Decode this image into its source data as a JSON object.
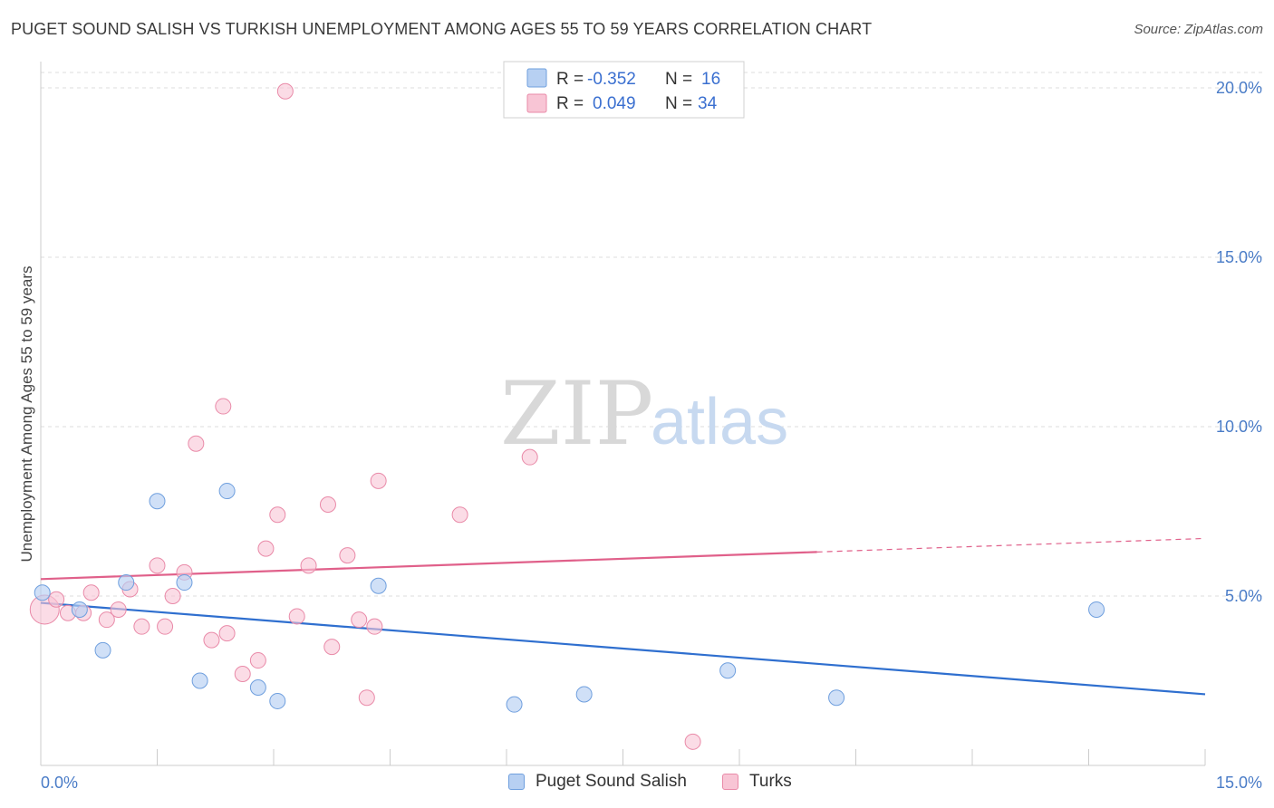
{
  "header": {
    "title": "PUGET SOUND SALISH VS TURKISH UNEMPLOYMENT AMONG AGES 55 TO 59 YEARS CORRELATION CHART",
    "source": "Source: ZipAtlas.com"
  },
  "watermark": {
    "zip": "ZIP",
    "atlas": "atlas"
  },
  "legend_box": {
    "rows": [
      {
        "r_label": "R =",
        "r_value": "-0.352",
        "n_label": "N =",
        "n_value": "16"
      },
      {
        "r_label": "R =",
        "r_value": "0.049",
        "n_label": "N =",
        "n_value": "34"
      }
    ]
  },
  "bottom_legend": {
    "series_a": "Puget Sound Salish",
    "series_b": "Turks"
  },
  "colors": {
    "salish_fill": "#b7d0f2",
    "salish_stroke": "#6f9fde",
    "salish_line": "#2f6fcf",
    "turks_fill": "#f8c5d5",
    "turks_stroke": "#e98aa8",
    "turks_line": "#e0608a",
    "tick_text": "#4a7cc7",
    "grid": "#dddddd"
  },
  "chart_data": {
    "type": "scatter",
    "title": "PUGET SOUND SALISH VS TURKISH UNEMPLOYMENT AMONG AGES 55 TO 59 YEARS CORRELATION CHART",
    "ylabel": "Unemployment Among Ages 55 to 59 years",
    "xlabel": "",
    "xlim": [
      0,
      15
    ],
    "ylim": [
      0,
      20.5
    ],
    "x_ticks": [
      "0.0%",
      "15.0%"
    ],
    "y_ticks": [
      "5.0%",
      "10.0%",
      "15.0%",
      "20.0%"
    ],
    "y_tick_values": [
      5,
      10,
      15,
      20
    ],
    "grid": true,
    "legend_position": "top-center",
    "series": [
      {
        "name": "Puget Sound Salish",
        "R": -0.352,
        "N": 16,
        "points": [
          {
            "x": 0.02,
            "y": 5.1
          },
          {
            "x": 0.5,
            "y": 4.6
          },
          {
            "x": 0.8,
            "y": 3.4
          },
          {
            "x": 1.1,
            "y": 5.4
          },
          {
            "x": 1.5,
            "y": 7.8
          },
          {
            "x": 1.85,
            "y": 5.4
          },
          {
            "x": 2.05,
            "y": 2.5
          },
          {
            "x": 2.4,
            "y": 8.1
          },
          {
            "x": 2.8,
            "y": 2.3
          },
          {
            "x": 3.05,
            "y": 1.9
          },
          {
            "x": 4.35,
            "y": 5.3
          },
          {
            "x": 6.1,
            "y": 1.8
          },
          {
            "x": 7.0,
            "y": 2.1
          },
          {
            "x": 8.85,
            "y": 2.8
          },
          {
            "x": 10.25,
            "y": 2.0
          },
          {
            "x": 13.6,
            "y": 4.6
          }
        ],
        "trend": {
          "x0": 0,
          "y0": 4.8,
          "x1": 15,
          "y1": 2.1
        }
      },
      {
        "name": "Turks",
        "R": 0.049,
        "N": 34,
        "points": [
          {
            "x": 0.05,
            "y": 4.6,
            "big": true
          },
          {
            "x": 0.2,
            "y": 4.9
          },
          {
            "x": 0.35,
            "y": 4.5
          },
          {
            "x": 0.55,
            "y": 4.5
          },
          {
            "x": 0.65,
            "y": 5.1
          },
          {
            "x": 0.85,
            "y": 4.3
          },
          {
            "x": 1.0,
            "y": 4.6
          },
          {
            "x": 1.15,
            "y": 5.2
          },
          {
            "x": 1.3,
            "y": 4.1
          },
          {
            "x": 1.5,
            "y": 5.9
          },
          {
            "x": 1.6,
            "y": 4.1
          },
          {
            "x": 1.7,
            "y": 5.0
          },
          {
            "x": 1.85,
            "y": 5.7
          },
          {
            "x": 2.0,
            "y": 9.5
          },
          {
            "x": 2.2,
            "y": 3.7
          },
          {
            "x": 2.35,
            "y": 10.6
          },
          {
            "x": 2.4,
            "y": 3.9
          },
          {
            "x": 2.6,
            "y": 2.7
          },
          {
            "x": 2.8,
            "y": 3.1
          },
          {
            "x": 2.9,
            "y": 6.4
          },
          {
            "x": 3.05,
            "y": 7.4
          },
          {
            "x": 3.15,
            "y": 19.9
          },
          {
            "x": 3.3,
            "y": 4.4
          },
          {
            "x": 3.45,
            "y": 5.9
          },
          {
            "x": 3.7,
            "y": 7.7
          },
          {
            "x": 3.75,
            "y": 3.5
          },
          {
            "x": 3.95,
            "y": 6.2
          },
          {
            "x": 4.1,
            "y": 4.3
          },
          {
            "x": 4.2,
            "y": 2.0
          },
          {
            "x": 4.3,
            "y": 4.1
          },
          {
            "x": 4.35,
            "y": 8.4
          },
          {
            "x": 5.4,
            "y": 7.4
          },
          {
            "x": 6.3,
            "y": 9.1
          },
          {
            "x": 8.4,
            "y": 0.7
          }
        ],
        "trend": {
          "x0": 0,
          "y0": 5.5,
          "x1": 10.0,
          "y1": 6.3,
          "dash_to_x": 15,
          "dash_to_y": 6.7
        }
      }
    ]
  }
}
